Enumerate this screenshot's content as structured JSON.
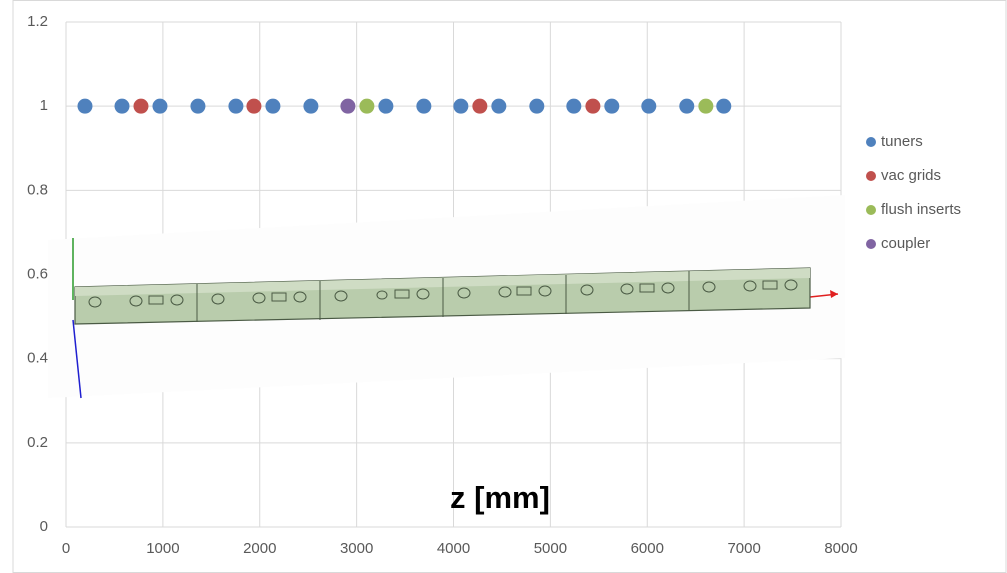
{
  "chart_data": {
    "type": "scatter",
    "annotation": "z [mm]",
    "series": [
      {
        "name": "tuners",
        "color": "#4f81bd",
        "x": [
          196,
          578,
          970,
          1362,
          1754,
          2136,
          2528,
          3302,
          3694,
          4076,
          4468,
          4860,
          5242,
          5634,
          6016,
          6408,
          6790
        ],
        "values": [
          1,
          1,
          1,
          1,
          1,
          1,
          1,
          1,
          1,
          1,
          1,
          1,
          1,
          1,
          1,
          1,
          1
        ]
      },
      {
        "name": "vac grids",
        "color": "#c0504d",
        "x": [
          774,
          1940,
          4272,
          5439
        ],
        "values": [
          1,
          1,
          1,
          1
        ]
      },
      {
        "name": "flush inserts",
        "color": "#9bbb59",
        "x": [
          3106,
          6605
        ],
        "values": [
          1,
          1
        ]
      },
      {
        "name": "coupler",
        "color": "#8064a2",
        "x": [
          2910
        ],
        "values": [
          1
        ]
      }
    ],
    "xlim": [
      0,
      8000
    ],
    "xticks": [
      0,
      1000,
      2000,
      3000,
      4000,
      5000,
      6000,
      7000,
      8000
    ],
    "ylim": [
      0,
      1.2
    ],
    "yticks": [
      0,
      0.2,
      0.4,
      0.6,
      0.8,
      1,
      1.2
    ],
    "grid": true,
    "legend": "right"
  }
}
